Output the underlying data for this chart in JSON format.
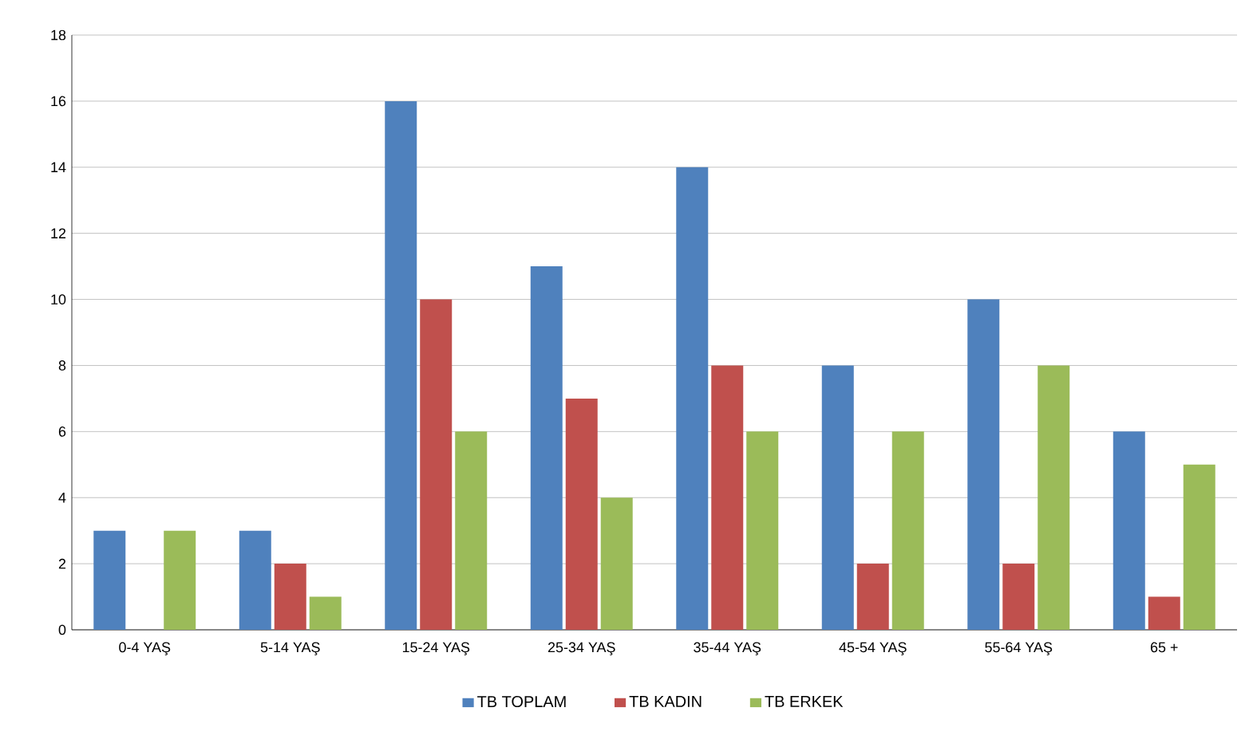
{
  "chart_data": {
    "type": "bar",
    "categories": [
      "0-4 YAŞ",
      "5-14 YAŞ",
      "15-24 YAŞ",
      "25-34 YAŞ",
      "35-44 YAŞ",
      "45-54 YAŞ",
      "55-64 YAŞ",
      "65 +"
    ],
    "series": [
      {
        "name": "TB TOPLAM",
        "color": "#4f81bd",
        "values": [
          3,
          3,
          16,
          11,
          14,
          8,
          10,
          6
        ]
      },
      {
        "name": "TB KADIN",
        "color": "#c0504d",
        "values": [
          0,
          2,
          10,
          7,
          8,
          2,
          2,
          1
        ]
      },
      {
        "name": "TB ERKEK",
        "color": "#9bbb59",
        "values": [
          3,
          1,
          6,
          4,
          6,
          6,
          8,
          5
        ]
      }
    ],
    "ylim": [
      0,
      18
    ],
    "yticks": [
      0,
      2,
      4,
      6,
      8,
      10,
      12,
      14,
      16,
      18
    ],
    "grid": "y",
    "legend": "bottom"
  }
}
